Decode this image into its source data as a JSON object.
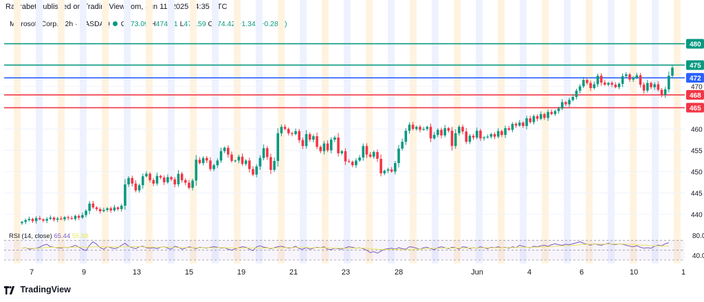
{
  "publisher": "Raorabet published on TradingView.com, Jun 11, 2025 14:35 UTC",
  "legend": {
    "symbol": "Microsoft Corp. · 2h · NASDAQ",
    "o_label": "O",
    "o_value": "473.09",
    "h_label": "H",
    "h_value": "474.91",
    "l_label": "L",
    "l_value": "472.59",
    "c_label": "C",
    "c_value": "474.42",
    "change": "+1.34 (+0.28%)"
  },
  "rsi_legend": {
    "label": "RSI (14, close)",
    "value": "65.44",
    "ma_value": "55.88"
  },
  "footer": {
    "brand": "TradingView"
  },
  "colors": {
    "up": "#089981",
    "down": "#f23645",
    "rsi": "#7e57c2",
    "rsi_ma": "#e8e65a",
    "level_green": "#089981",
    "level_blue": "#2962ff",
    "level_red": "#f23645",
    "session_orange": "#fff3e0",
    "session_blue": "#eef2ff"
  },
  "chart_data": {
    "type": "candlestick",
    "symbol": "Microsoft Corp.",
    "interval": "2h",
    "exchange": "NASDAQ",
    "y_range": [
      437,
      483
    ],
    "y_ticks": [
      440,
      445,
      450,
      455,
      460,
      470
    ],
    "x_ticks": [
      "7",
      "9",
      "13",
      "15",
      "19",
      "21",
      "23",
      "28",
      "Jun",
      "4",
      "6",
      "10",
      "1"
    ],
    "levels": [
      {
        "value": 480,
        "label": "480",
        "color": "#089981"
      },
      {
        "value": 475,
        "label": "475",
        "color": "#089981"
      },
      {
        "value": 472,
        "label": "472",
        "color": "#2962ff"
      },
      {
        "value": 468,
        "label": "468",
        "color": "#f23645"
      },
      {
        "value": 465,
        "label": "465",
        "color": "#f23645"
      }
    ],
    "closes": [
      438.2,
      438.6,
      438.9,
      438.4,
      439.1,
      438.8,
      438.5,
      438.9,
      439.2,
      438.7,
      439.0,
      438.8,
      439.3,
      439.1,
      438.9,
      439.6,
      439.2,
      439.8,
      440.8,
      442.5,
      441.6,
      441.2,
      440.7,
      441.0,
      441.4,
      440.9,
      441.6,
      441.2,
      442.0,
      447.0,
      448.5,
      447.2,
      445.6,
      446.8,
      448.9,
      449.5,
      448.0,
      447.2,
      449.0,
      448.6,
      447.5,
      448.7,
      448.2,
      447.0,
      449.5,
      448.0,
      447.4,
      446.2,
      447.9,
      452.8,
      452.0,
      453.2,
      452.6,
      450.6,
      451.5,
      452.6,
      454.8,
      455.6,
      454.0,
      452.5,
      452.6,
      453.5,
      451.8,
      452.6,
      450.6,
      449.3,
      451.2,
      453.2,
      455.5,
      453.4,
      450.4,
      452.5,
      459.0,
      460.5,
      460.0,
      459.0,
      458.8,
      459.5,
      457.4,
      456.0,
      458.8,
      457.5,
      458.3,
      455.8,
      454.8,
      456.6,
      455.0,
      457.5,
      458.0,
      454.3,
      454.8,
      452.4,
      452.3,
      451.5,
      452.6,
      453.3,
      456.0,
      454.0,
      453.5,
      454.6,
      453.0,
      449.6,
      450.2,
      450.5,
      450.0,
      452.0,
      455.4,
      457.0,
      459.6,
      461.0,
      460.0,
      460.5,
      459.8,
      460.0,
      460.5,
      457.8,
      458.6,
      459.8,
      458.5,
      460.2,
      459.6,
      456.0,
      459.0,
      460.5,
      459.4,
      457.0,
      458.4,
      458.0,
      459.6,
      457.8,
      458.0,
      458.2,
      458.8,
      458.2,
      459.5,
      458.6,
      460.2,
      459.8,
      461.2,
      460.8,
      461.5,
      460.7,
      462.5,
      461.6,
      463.0,
      462.4,
      463.5,
      462.6,
      464.0,
      463.5,
      464.2,
      464.8,
      466.3,
      465.8,
      466.8,
      467.5,
      469.0,
      470.0,
      471.5,
      470.8,
      469.6,
      470.5,
      472.5,
      470.9,
      470.4,
      470.8,
      470.4,
      469.8,
      470.6,
      472.4,
      472.8,
      471.6,
      472.0,
      472.6,
      470.4,
      469.0,
      470.8,
      469.8,
      470.5,
      469.2,
      468.0,
      469.3,
      472.5,
      474.4
    ],
    "rsi": [
      54,
      55,
      52,
      53,
      54,
      56,
      60,
      62,
      57,
      56,
      55,
      54,
      56,
      55,
      57,
      60,
      56,
      52,
      49,
      60,
      67,
      62,
      55,
      52,
      57,
      55,
      53,
      55,
      60,
      64,
      58,
      55,
      53,
      57,
      58,
      55,
      54,
      55,
      53,
      56,
      57,
      54,
      52,
      58,
      56,
      52,
      54,
      57,
      55,
      53,
      56,
      55,
      54,
      56,
      57,
      56,
      54,
      55,
      52,
      50,
      53,
      55,
      57,
      56,
      52,
      49,
      57,
      59,
      56,
      55,
      53,
      55,
      57,
      58,
      56,
      54,
      55,
      58,
      53,
      52,
      55,
      52,
      54,
      56,
      55,
      57,
      52,
      51,
      54,
      53,
      52,
      55,
      57,
      56,
      54,
      55,
      53,
      50,
      45,
      47,
      44,
      48,
      52,
      53,
      54,
      52,
      55,
      53,
      52,
      57,
      56,
      54,
      52,
      55,
      56,
      53,
      51,
      55,
      57,
      55,
      53,
      56,
      55,
      52,
      57,
      56,
      53,
      55,
      54,
      57,
      55,
      53,
      56,
      55,
      57,
      55,
      56,
      54,
      57,
      55,
      60,
      58,
      56,
      55,
      58,
      57,
      59,
      60,
      58,
      61,
      63,
      61,
      60,
      62,
      61,
      63,
      65,
      67,
      64,
      62,
      60,
      63,
      61,
      60,
      62,
      64,
      62,
      61,
      63,
      62,
      60,
      58,
      57,
      59,
      56,
      54,
      55,
      54,
      58,
      60,
      59,
      63,
      65
    ]
  }
}
